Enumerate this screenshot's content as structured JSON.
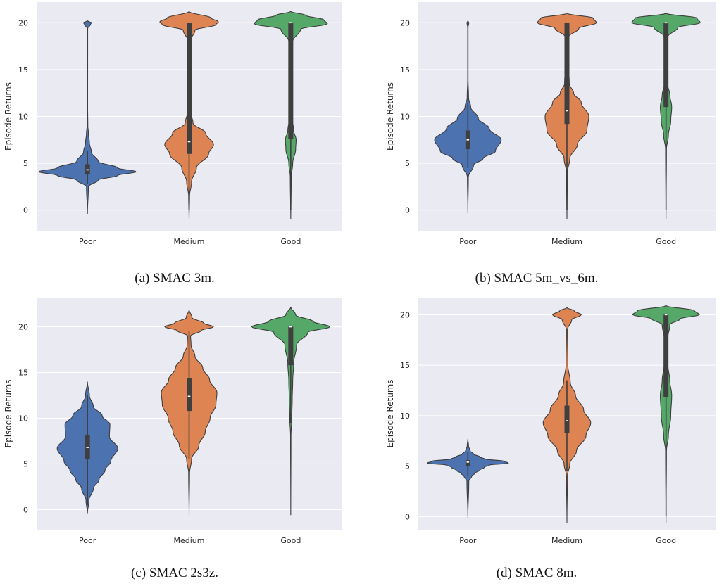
{
  "chart_data": [
    {
      "type": "violin",
      "caption": "(a) SMAC 3m.",
      "ylabel": "Episode Returns",
      "categories": [
        "Poor",
        "Medium",
        "Good"
      ],
      "yticks": [
        0,
        5,
        10,
        15,
        20
      ],
      "ylim": [
        -2.2,
        22.2
      ],
      "grid": true,
      "series": [
        {
          "color": "#4c72b0",
          "extent": [
            -0.4,
            20.2
          ],
          "box": {
            "q1": 3.8,
            "median": 4.3,
            "q3": 4.9,
            "whisker_low": 2.8,
            "whisker_high": 6.3
          },
          "density": [
            [
              -0.4,
              0
            ],
            [
              2.5,
              0.02
            ],
            [
              3.2,
              0.22
            ],
            [
              3.7,
              0.62
            ],
            [
              4.1,
              1
            ],
            [
              4.5,
              0.62
            ],
            [
              5.2,
              0.22
            ],
            [
              6.2,
              0.08
            ],
            [
              7.2,
              0.04
            ],
            [
              8.2,
              0.02
            ],
            [
              9,
              0.008
            ],
            [
              11,
              0.004
            ],
            [
              19.4,
              0.005
            ],
            [
              19.8,
              0.06
            ],
            [
              20,
              0.08
            ],
            [
              20.2,
              0
            ]
          ]
        },
        {
          "color": "#dd8452",
          "extent": [
            -1.0,
            21.2
          ],
          "box": {
            "q1": 6.0,
            "median": 7.3,
            "q3": 20.0,
            "whisker_low": 0,
            "whisker_high": 20.0
          },
          "density": [
            [
              -1,
              0
            ],
            [
              1.5,
              0.01
            ],
            [
              3,
              0.05
            ],
            [
              4.5,
              0.15
            ],
            [
              6,
              0.4
            ],
            [
              7,
              0.5
            ],
            [
              8.2,
              0.34
            ],
            [
              9.3,
              0.08
            ],
            [
              10.5,
              0.03
            ],
            [
              14,
              0.015
            ],
            [
              18,
              0.02
            ],
            [
              19.2,
              0.12
            ],
            [
              19.8,
              0.55
            ],
            [
              20.1,
              0.6
            ],
            [
              20.5,
              0.45
            ],
            [
              21.2,
              0
            ]
          ]
        },
        {
          "color": "#55a868",
          "extent": [
            -1.0,
            21.2
          ],
          "box": {
            "q1": 7.6,
            "median": 20.0,
            "q3": 20.0,
            "whisker_low": 0,
            "whisker_high": 20.0
          },
          "density": [
            [
              -1,
              0
            ],
            [
              3.5,
              0.01
            ],
            [
              5,
              0.04
            ],
            [
              6.5,
              0.1
            ],
            [
              7.5,
              0.11
            ],
            [
              8.5,
              0.06
            ],
            [
              10,
              0.02
            ],
            [
              15,
              0.015
            ],
            [
              18,
              0.04
            ],
            [
              19.3,
              0.2
            ],
            [
              19.9,
              0.75
            ],
            [
              20.3,
              0.68
            ],
            [
              20.8,
              0.3
            ],
            [
              21.2,
              0
            ]
          ]
        }
      ]
    },
    {
      "type": "violin",
      "caption": "(b) SMAC 5m_vs_6m.",
      "ylabel": "Episode Returns",
      "categories": [
        "Poor",
        "Medium",
        "Good"
      ],
      "yticks": [
        0,
        5,
        10,
        15,
        20
      ],
      "ylim": [
        -2.2,
        22.2
      ],
      "grid": true,
      "series": [
        {
          "color": "#4c72b0",
          "extent": [
            -0.3,
            20.2
          ],
          "box": {
            "q1": 6.5,
            "median": 7.5,
            "q3": 8.5,
            "whisker_low": 4.5,
            "whisker_high": 11.5
          },
          "density": [
            [
              -0.3,
              0
            ],
            [
              3.5,
              0.01
            ],
            [
              4.8,
              0.12
            ],
            [
              5.5,
              0.32
            ],
            [
              6.3,
              0.58
            ],
            [
              7.5,
              0.7
            ],
            [
              8.7,
              0.45
            ],
            [
              9.8,
              0.22
            ],
            [
              11,
              0.06
            ],
            [
              12,
              0.015
            ],
            [
              14,
              0.004
            ],
            [
              19.5,
              0.004
            ],
            [
              20,
              0.02
            ],
            [
              20.2,
              0
            ]
          ]
        },
        {
          "color": "#dd8452",
          "extent": [
            -1.0,
            21.0
          ],
          "box": {
            "q1": 9.2,
            "median": 10.6,
            "q3": 20.0,
            "whisker_low": 0,
            "whisker_high": 20.0
          },
          "density": [
            [
              -1,
              0
            ],
            [
              4,
              0.01
            ],
            [
              5.5,
              0.06
            ],
            [
              7,
              0.22
            ],
            [
              8.5,
              0.42
            ],
            [
              10,
              0.46
            ],
            [
              11.5,
              0.3
            ],
            [
              12.5,
              0.14
            ],
            [
              13.5,
              0.05
            ],
            [
              16,
              0.02
            ],
            [
              18.5,
              0.04
            ],
            [
              19.4,
              0.25
            ],
            [
              20,
              0.62
            ],
            [
              20.5,
              0.55
            ],
            [
              21,
              0
            ]
          ]
        },
        {
          "color": "#55a868",
          "extent": [
            -1.0,
            21.0
          ],
          "box": {
            "q1": 11.0,
            "median": 20.0,
            "q3": 20.0,
            "whisker_low": 0,
            "whisker_high": 20.0
          },
          "density": [
            [
              -1,
              0
            ],
            [
              6.5,
              0.01
            ],
            [
              8,
              0.05
            ],
            [
              9.5,
              0.1
            ],
            [
              11,
              0.12
            ],
            [
              12.3,
              0.08
            ],
            [
              13.5,
              0.03
            ],
            [
              16,
              0.015
            ],
            [
              18.5,
              0.04
            ],
            [
              19.5,
              0.25
            ],
            [
              20,
              0.72
            ],
            [
              20.5,
              0.65
            ],
            [
              21,
              0
            ]
          ]
        }
      ]
    },
    {
      "type": "violin",
      "caption": "(c) SMAC 2s3z.",
      "ylabel": "Episode Returns",
      "categories": [
        "Poor",
        "Medium",
        "Good"
      ],
      "yticks": [
        0,
        5,
        10,
        15,
        20
      ],
      "ylim": [
        -2.2,
        23.2
      ],
      "grid": true,
      "series": [
        {
          "color": "#4c72b0",
          "extent": [
            -0.4,
            14.0
          ],
          "box": {
            "q1": 5.5,
            "median": 6.8,
            "q3": 8.2,
            "whisker_low": 0.5,
            "whisker_high": 12.5
          },
          "density": [
            [
              -0.4,
              0
            ],
            [
              1,
              0.03
            ],
            [
              2.3,
              0.12
            ],
            [
              3.3,
              0.24
            ],
            [
              4.3,
              0.36
            ],
            [
              5.3,
              0.48
            ],
            [
              6.7,
              0.62
            ],
            [
              8,
              0.45
            ],
            [
              9.3,
              0.46
            ],
            [
              10.3,
              0.3
            ],
            [
              11.3,
              0.12
            ],
            [
              12.5,
              0.04
            ],
            [
              14,
              0
            ]
          ]
        },
        {
          "color": "#dd8452",
          "extent": [
            -0.6,
            21.9
          ],
          "box": {
            "q1": 10.8,
            "median": 12.4,
            "q3": 14.4,
            "whisker_low": 5.5,
            "whisker_high": 19.5
          },
          "density": [
            [
              -0.6,
              0
            ],
            [
              4,
              0.01
            ],
            [
              5.5,
              0.05
            ],
            [
              7,
              0.2
            ],
            [
              8.5,
              0.33
            ],
            [
              10,
              0.43
            ],
            [
              11.5,
              0.55
            ],
            [
              12.8,
              0.57
            ],
            [
              14.2,
              0.42
            ],
            [
              15.5,
              0.28
            ],
            [
              16.8,
              0.12
            ],
            [
              18,
              0.04
            ],
            [
              19,
              0.03
            ],
            [
              19.6,
              0.25
            ],
            [
              20,
              0.5
            ],
            [
              20.4,
              0.3
            ],
            [
              21,
              0.06
            ],
            [
              21.9,
              0
            ]
          ]
        },
        {
          "color": "#55a868",
          "extent": [
            -0.6,
            22.2
          ],
          "box": {
            "q1": 15.8,
            "median": 20.0,
            "q3": 20.0,
            "whisker_low": 9.5,
            "whisker_high": 20.0
          },
          "density": [
            [
              -0.6,
              0
            ],
            [
              8,
              0.004
            ],
            [
              10,
              0.02
            ],
            [
              12,
              0.03
            ],
            [
              14,
              0.04
            ],
            [
              16,
              0.06
            ],
            [
              18,
              0.12
            ],
            [
              19.4,
              0.35
            ],
            [
              20,
              0.8
            ],
            [
              20.6,
              0.45
            ],
            [
              21.3,
              0.1
            ],
            [
              22.2,
              0
            ]
          ]
        }
      ]
    },
    {
      "type": "violin",
      "caption": "(d) SMAC 8m.",
      "ylabel": "Episode Returns",
      "categories": [
        "Poor",
        "Medium",
        "Good"
      ],
      "yticks": [
        0,
        5,
        10,
        15,
        20
      ],
      "ylim": [
        -1.3,
        21.7
      ],
      "grid": true,
      "series": [
        {
          "color": "#4c72b0",
          "extent": [
            -0.1,
            7.7
          ],
          "box": {
            "q1": 5.0,
            "median": 5.4,
            "q3": 5.6,
            "whisker_low": 4.0,
            "whisker_high": 6.4
          },
          "density": [
            [
              -0.1,
              0
            ],
            [
              3.5,
              0.02
            ],
            [
              4.0,
              0.08
            ],
            [
              4.3,
              0.15
            ],
            [
              4.6,
              0.25
            ],
            [
              4.9,
              0.35
            ],
            [
              5.1,
              0.45
            ],
            [
              5.3,
              0.85
            ],
            [
              5.5,
              0.75
            ],
            [
              5.7,
              0.36
            ],
            [
              5.9,
              0.26
            ],
            [
              6.2,
              0.12
            ],
            [
              6.5,
              0.05
            ],
            [
              7,
              0.015
            ],
            [
              7.7,
              0
            ]
          ]
        },
        {
          "color": "#dd8452",
          "extent": [
            -0.6,
            20.7
          ],
          "box": {
            "q1": 8.3,
            "median": 9.5,
            "q3": 11.0,
            "whisker_low": 4.5,
            "whisker_high": 13.5
          },
          "density": [
            [
              -0.6,
              0
            ],
            [
              4,
              0.01
            ],
            [
              5.2,
              0.06
            ],
            [
              6.5,
              0.2
            ],
            [
              8,
              0.4
            ],
            [
              9.3,
              0.5
            ],
            [
              10.6,
              0.35
            ],
            [
              12,
              0.18
            ],
            [
              13.3,
              0.07
            ],
            [
              15,
              0.02
            ],
            [
              18.5,
              0.01
            ],
            [
              19.5,
              0.1
            ],
            [
              20,
              0.3
            ],
            [
              20.4,
              0.15
            ],
            [
              20.7,
              0
            ]
          ]
        },
        {
          "color": "#55a868",
          "extent": [
            -0.6,
            20.9
          ],
          "box": {
            "q1": 11.8,
            "median": 20.0,
            "q3": 20.0,
            "whisker_low": 0,
            "whisker_high": 20.0
          },
          "density": [
            [
              -0.6,
              0
            ],
            [
              6.5,
              0.01
            ],
            [
              8,
              0.05
            ],
            [
              10,
              0.1
            ],
            [
              12,
              0.12
            ],
            [
              13.5,
              0.08
            ],
            [
              15,
              0.04
            ],
            [
              17.5,
              0.03
            ],
            [
              19,
              0.08
            ],
            [
              19.6,
              0.3
            ],
            [
              20,
              0.7
            ],
            [
              20.4,
              0.6
            ],
            [
              20.9,
              0
            ]
          ]
        }
      ]
    }
  ]
}
